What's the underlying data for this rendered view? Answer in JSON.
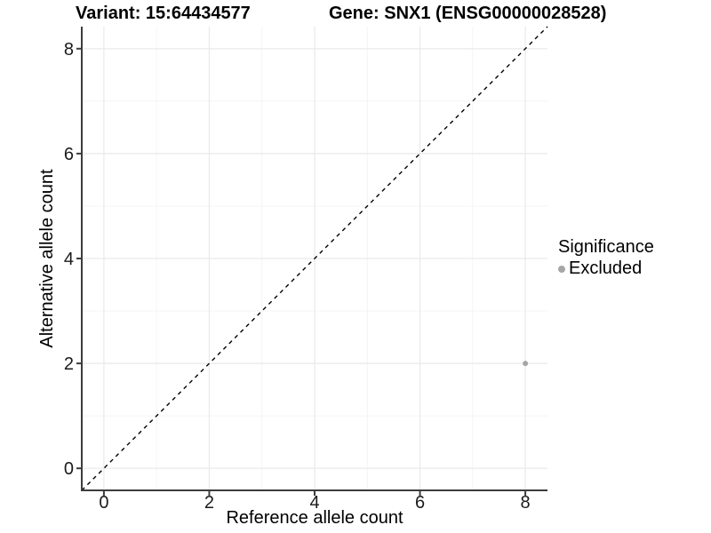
{
  "titles": {
    "variant": "Variant: 15:64434577",
    "gene": "Gene: SNX1 (ENSG00000028528)"
  },
  "chart_data": {
    "type": "scatter",
    "title": "",
    "xlabel": "Reference allele count",
    "ylabel": "Alternative allele count",
    "xlim": [
      -0.42,
      8.42
    ],
    "ylim": [
      -0.42,
      8.42
    ],
    "x_ticks": [
      0,
      2,
      4,
      6,
      8
    ],
    "y_ticks": [
      0,
      2,
      4,
      6,
      8
    ],
    "x_minor_ticks": [
      1,
      3,
      5,
      7
    ],
    "y_minor_ticks": [
      1,
      3,
      5,
      7
    ],
    "grid": true,
    "identity_line": {
      "style": "dashed",
      "from": [
        -0.42,
        -0.42
      ],
      "to": [
        8.42,
        8.42
      ],
      "color": "#000000"
    },
    "series": [
      {
        "name": "Excluded",
        "color": "#a6a6a6",
        "points": [
          [
            8,
            2
          ]
        ]
      }
    ],
    "legend": {
      "title": "Significance",
      "position": "right",
      "entries": [
        {
          "label": "Excluded",
          "color": "#a6a6a6"
        }
      ]
    }
  },
  "colors": {
    "background": "#ffffff",
    "grid_major": "#e9e9e9",
    "grid_minor": "#f4f4f4",
    "axis": "#3c3c3c",
    "tick_text": "#1a1a1a",
    "identity_line": "#000000",
    "excluded_point": "#a6a6a6"
  }
}
